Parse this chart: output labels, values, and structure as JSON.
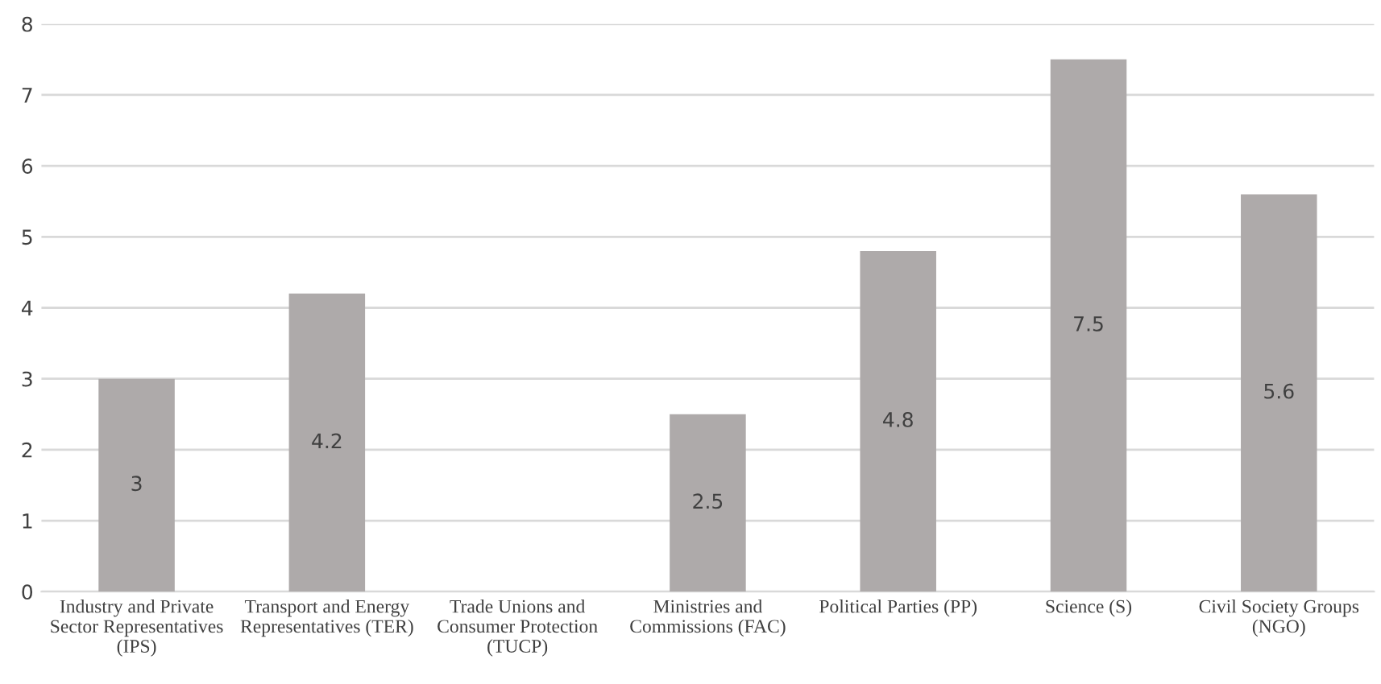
{
  "chart_data": {
    "type": "bar",
    "categories": [
      "Industry and Private\nSector Representatives\n(IPS)",
      "Transport and Energy\nRepresentatives (TER)",
      "Trade Unions and\nConsumer Protection\n(TUCP)",
      "Ministries and\nCommissions (FAC)",
      "Political Parties (PP)",
      "Science (S)",
      "Civil Society Groups\n(NGO)"
    ],
    "values": [
      3,
      4.2,
      null,
      2.5,
      4.8,
      7.5,
      5.6
    ],
    "color": "#aeaaaa",
    "ylim": [
      0,
      8
    ],
    "yticks": [
      0,
      1,
      2,
      3,
      4,
      5,
      6,
      7,
      8
    ],
    "grid": "y",
    "data_labels": true
  }
}
